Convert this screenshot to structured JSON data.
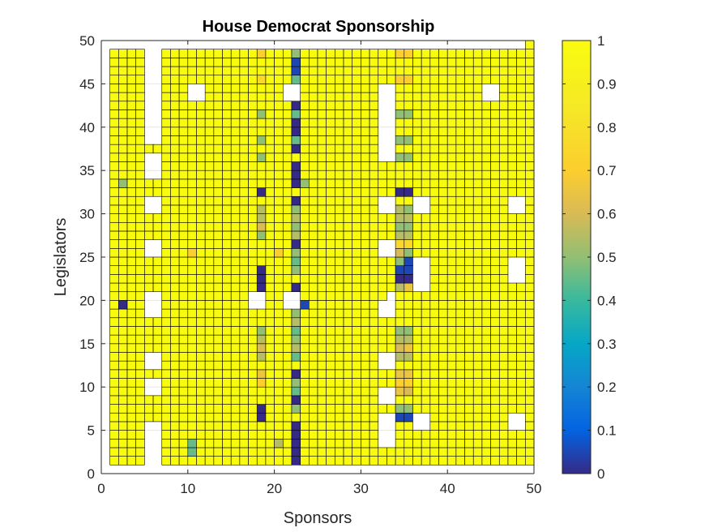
{
  "chart_data": {
    "type": "heatmap",
    "title": "House Democrat Sponsorship",
    "xlabel": "Sponsors",
    "ylabel": "Legislators",
    "xlim": [
      0,
      50
    ],
    "ylim": [
      0,
      50
    ],
    "xticks": [
      0,
      10,
      20,
      30,
      40,
      50
    ],
    "yticks": [
      0,
      5,
      10,
      15,
      20,
      25,
      30,
      35,
      40,
      45,
      50
    ],
    "colorbar": {
      "range": [
        0,
        1
      ],
      "ticks": [
        0,
        0.1,
        0.2,
        0.3,
        0.4,
        0.5,
        0.6,
        0.7,
        0.8,
        0.9,
        1
      ],
      "tick_labels": [
        "0",
        "0.1",
        "0.2",
        "0.3",
        "0.4",
        "0.5",
        "0.6",
        "0.7",
        "0.8",
        "0.9",
        "1"
      ],
      "colormap": "parula"
    },
    "cell_extent": {
      "x": [
        1,
        49
      ],
      "y": [
        1,
        49
      ]
    },
    "missing_note": "null entries are NaN cells shown blank",
    "base_value": 1,
    "nan_cells": [
      [
        5,
        1
      ],
      [
        5,
        2
      ],
      [
        5,
        3
      ],
      [
        5,
        4
      ],
      [
        5,
        5
      ],
      [
        5,
        9
      ],
      [
        5,
        10
      ],
      [
        5,
        12
      ],
      [
        5,
        13
      ],
      [
        5,
        18
      ],
      [
        5,
        19
      ],
      [
        5,
        20
      ],
      [
        5,
        25
      ],
      [
        5,
        26
      ],
      [
        5,
        30
      ],
      [
        5,
        31
      ],
      [
        5,
        34
      ],
      [
        5,
        35
      ],
      [
        5,
        36
      ],
      [
        5,
        38
      ],
      [
        5,
        39
      ],
      [
        5,
        40
      ],
      [
        5,
        41
      ],
      [
        5,
        42
      ],
      [
        5,
        43
      ],
      [
        5,
        44
      ],
      [
        5,
        45
      ],
      [
        5,
        46
      ],
      [
        5,
        47
      ],
      [
        5,
        48
      ],
      [
        6,
        1
      ],
      [
        6,
        2
      ],
      [
        6,
        3
      ],
      [
        6,
        4
      ],
      [
        6,
        5
      ],
      [
        6,
        9
      ],
      [
        6,
        10
      ],
      [
        6,
        12
      ],
      [
        6,
        13
      ],
      [
        6,
        18
      ],
      [
        6,
        19
      ],
      [
        6,
        20
      ],
      [
        6,
        25
      ],
      [
        6,
        26
      ],
      [
        6,
        30
      ],
      [
        6,
        31
      ],
      [
        6,
        34
      ],
      [
        6,
        35
      ],
      [
        6,
        36
      ],
      [
        6,
        38
      ],
      [
        6,
        39
      ],
      [
        6,
        40
      ],
      [
        6,
        41
      ],
      [
        6,
        42
      ],
      [
        6,
        43
      ],
      [
        6,
        44
      ],
      [
        6,
        45
      ],
      [
        6,
        46
      ],
      [
        6,
        47
      ],
      [
        6,
        48
      ],
      [
        10,
        43
      ],
      [
        10,
        44
      ],
      [
        11,
        43
      ],
      [
        11,
        44
      ],
      [
        17,
        19
      ],
      [
        17,
        20
      ],
      [
        18,
        19
      ],
      [
        18,
        20
      ],
      [
        21,
        19
      ],
      [
        21,
        20
      ],
      [
        21,
        43
      ],
      [
        21,
        44
      ],
      [
        22,
        19
      ],
      [
        22,
        20
      ],
      [
        22,
        43
      ],
      [
        22,
        44
      ],
      [
        32,
        3
      ],
      [
        32,
        4
      ],
      [
        32,
        5
      ],
      [
        32,
        6
      ],
      [
        32,
        8
      ],
      [
        32,
        9
      ],
      [
        32,
        12
      ],
      [
        32,
        13
      ],
      [
        32,
        18
      ],
      [
        32,
        19
      ],
      [
        32,
        25
      ],
      [
        32,
        26
      ],
      [
        32,
        30
      ],
      [
        32,
        31
      ],
      [
        32,
        36
      ],
      [
        32,
        37
      ],
      [
        32,
        38
      ],
      [
        32,
        39
      ],
      [
        32,
        40
      ],
      [
        32,
        41
      ],
      [
        32,
        42
      ],
      [
        32,
        43
      ],
      [
        32,
        44
      ],
      [
        33,
        3
      ],
      [
        33,
        4
      ],
      [
        33,
        5
      ],
      [
        33,
        6
      ],
      [
        33,
        8
      ],
      [
        33,
        9
      ],
      [
        33,
        12
      ],
      [
        33,
        13
      ],
      [
        33,
        18
      ],
      [
        33,
        19
      ],
      [
        33,
        20
      ],
      [
        33,
        25
      ],
      [
        33,
        26
      ],
      [
        33,
        30
      ],
      [
        33,
        31
      ],
      [
        33,
        36
      ],
      [
        33,
        37
      ],
      [
        33,
        38
      ],
      [
        33,
        39
      ],
      [
        33,
        40
      ],
      [
        33,
        41
      ],
      [
        33,
        42
      ],
      [
        33,
        43
      ],
      [
        33,
        44
      ],
      [
        36,
        5
      ],
      [
        36,
        6
      ],
      [
        36,
        21
      ],
      [
        36,
        22
      ],
      [
        36,
        23
      ],
      [
        36,
        24
      ],
      [
        36,
        30
      ],
      [
        36,
        31
      ],
      [
        37,
        5
      ],
      [
        37,
        6
      ],
      [
        37,
        21
      ],
      [
        37,
        22
      ],
      [
        37,
        23
      ],
      [
        37,
        24
      ],
      [
        37,
        30
      ],
      [
        37,
        31
      ],
      [
        44,
        43
      ],
      [
        44,
        44
      ],
      [
        45,
        43
      ],
      [
        45,
        44
      ],
      [
        47,
        5
      ],
      [
        47,
        6
      ],
      [
        47,
        22
      ],
      [
        47,
        23
      ],
      [
        47,
        24
      ],
      [
        47,
        30
      ],
      [
        47,
        31
      ],
      [
        48,
        5
      ],
      [
        48,
        6
      ],
      [
        48,
        22
      ],
      [
        48,
        23
      ],
      [
        48,
        24
      ],
      [
        48,
        30
      ],
      [
        48,
        31
      ],
      [
        1,
        49
      ],
      [
        2,
        49
      ],
      [
        3,
        49
      ],
      [
        4,
        49
      ],
      [
        5,
        49
      ],
      [
        6,
        49
      ],
      [
        7,
        49
      ],
      [
        8,
        49
      ],
      [
        9,
        49
      ],
      [
        10,
        49
      ],
      [
        11,
        49
      ],
      [
        12,
        49
      ],
      [
        13,
        49
      ],
      [
        14,
        49
      ],
      [
        15,
        49
      ],
      [
        16,
        49
      ],
      [
        17,
        49
      ],
      [
        18,
        49
      ],
      [
        19,
        49
      ],
      [
        20,
        49
      ],
      [
        21,
        49
      ],
      [
        22,
        49
      ],
      [
        23,
        49
      ],
      [
        24,
        49
      ],
      [
        25,
        49
      ],
      [
        26,
        49
      ],
      [
        27,
        49
      ],
      [
        28,
        49
      ],
      [
        29,
        49
      ],
      [
        30,
        49
      ],
      [
        31,
        49
      ],
      [
        32,
        49
      ],
      [
        33,
        49
      ],
      [
        34,
        49
      ],
      [
        35,
        49
      ],
      [
        36,
        49
      ],
      [
        37,
        49
      ],
      [
        38,
        49
      ],
      [
        39,
        49
      ],
      [
        40,
        49
      ],
      [
        41,
        49
      ],
      [
        42,
        49
      ],
      [
        43,
        49
      ],
      [
        44,
        49
      ],
      [
        45,
        49
      ],
      [
        46,
        49
      ],
      [
        47,
        49
      ],
      [
        48,
        49
      ]
    ],
    "value_cells": [
      [
        2,
        33,
        0.5
      ],
      [
        2,
        19,
        0.0
      ],
      [
        10,
        25,
        0.7
      ],
      [
        10,
        3,
        0.45
      ],
      [
        10,
        2,
        0.45
      ],
      [
        18,
        48,
        0.7
      ],
      [
        18,
        45,
        0.75
      ],
      [
        18,
        41,
        0.5
      ],
      [
        18,
        38,
        0.5
      ],
      [
        18,
        36,
        0.5
      ],
      [
        18,
        32,
        0.0
      ],
      [
        18,
        30,
        0.55
      ],
      [
        18,
        29,
        0.55
      ],
      [
        18,
        28,
        0.6
      ],
      [
        18,
        27,
        0.5
      ],
      [
        18,
        23,
        0.0
      ],
      [
        18,
        22,
        0.0
      ],
      [
        18,
        21,
        0.0
      ],
      [
        18,
        16,
        0.5
      ],
      [
        18,
        15,
        0.55
      ],
      [
        18,
        14,
        0.6
      ],
      [
        18,
        13,
        0.55
      ],
      [
        18,
        11,
        0.65
      ],
      [
        18,
        10,
        0.7
      ],
      [
        18,
        7,
        0.0
      ],
      [
        18,
        6,
        0.0
      ],
      [
        20,
        25,
        0.7
      ],
      [
        20,
        3,
        0.55
      ],
      [
        22,
        48,
        0.5
      ],
      [
        22,
        47,
        0.05
      ],
      [
        22,
        46,
        0.05
      ],
      [
        22,
        45,
        0.45
      ],
      [
        22,
        42,
        0.0
      ],
      [
        22,
        41,
        0.45
      ],
      [
        22,
        40,
        0.0
      ],
      [
        22,
        39,
        0.0
      ],
      [
        22,
        38,
        0.45
      ],
      [
        22,
        37,
        0.0
      ],
      [
        22,
        35,
        0.0
      ],
      [
        22,
        34,
        0.0
      ],
      [
        22,
        33,
        0.0
      ],
      [
        22,
        31,
        0.0
      ],
      [
        22,
        30,
        0.5
      ],
      [
        22,
        29,
        0.55
      ],
      [
        22,
        28,
        0.5
      ],
      [
        22,
        27,
        0.55
      ],
      [
        22,
        26,
        0.0
      ],
      [
        22,
        25,
        0.5
      ],
      [
        22,
        24,
        0.45
      ],
      [
        22,
        23,
        0.5
      ],
      [
        22,
        21,
        0.0
      ],
      [
        22,
        18,
        0.5
      ],
      [
        22,
        17,
        0.55
      ],
      [
        22,
        16,
        0.45
      ],
      [
        22,
        15,
        0.5
      ],
      [
        22,
        14,
        0.55
      ],
      [
        22,
        13,
        0.45
      ],
      [
        22,
        11,
        0.0
      ],
      [
        22,
        10,
        0.5
      ],
      [
        22,
        9,
        0.45
      ],
      [
        22,
        8,
        0.0
      ],
      [
        22,
        7,
        0.5
      ],
      [
        22,
        5,
        0.0
      ],
      [
        22,
        4,
        0.0
      ],
      [
        22,
        3,
        0.0
      ],
      [
        22,
        2,
        0.0
      ],
      [
        22,
        1,
        0.0
      ],
      [
        23,
        33,
        0.5
      ],
      [
        23,
        19,
        0.05
      ],
      [
        34,
        48,
        0.7
      ],
      [
        34,
        45,
        0.7
      ],
      [
        34,
        41,
        0.5
      ],
      [
        34,
        38,
        0.5
      ],
      [
        34,
        36,
        0.5
      ],
      [
        34,
        32,
        0.0
      ],
      [
        34,
        30,
        0.55
      ],
      [
        34,
        29,
        0.55
      ],
      [
        34,
        28,
        0.5
      ],
      [
        34,
        27,
        0.55
      ],
      [
        34,
        26,
        0.75
      ],
      [
        34,
        25,
        0.6
      ],
      [
        34,
        24,
        0.5
      ],
      [
        34,
        23,
        0.05
      ],
      [
        34,
        22,
        0.0
      ],
      [
        34,
        21,
        0.55
      ],
      [
        34,
        16,
        0.5
      ],
      [
        34,
        15,
        0.55
      ],
      [
        34,
        14,
        0.6
      ],
      [
        34,
        13,
        0.55
      ],
      [
        34,
        11,
        0.65
      ],
      [
        34,
        10,
        0.7
      ],
      [
        34,
        9,
        0.65
      ],
      [
        34,
        7,
        0.5
      ],
      [
        34,
        6,
        0.05
      ],
      [
        35,
        48,
        0.7
      ],
      [
        35,
        45,
        0.7
      ],
      [
        35,
        41,
        0.5
      ],
      [
        35,
        38,
        0.5
      ],
      [
        35,
        36,
        0.5
      ],
      [
        35,
        32,
        0.0
      ],
      [
        35,
        30,
        0.5
      ],
      [
        35,
        29,
        0.55
      ],
      [
        35,
        28,
        0.5
      ],
      [
        35,
        27,
        0.55
      ],
      [
        35,
        26,
        0.75
      ],
      [
        35,
        25,
        0.5
      ],
      [
        35,
        24,
        0.05
      ],
      [
        35,
        23,
        0.05
      ],
      [
        35,
        22,
        0.0
      ],
      [
        35,
        21,
        0.65
      ],
      [
        35,
        16,
        0.5
      ],
      [
        35,
        15,
        0.55
      ],
      [
        35,
        14,
        0.65
      ],
      [
        35,
        13,
        0.55
      ],
      [
        35,
        11,
        0.65
      ],
      [
        35,
        10,
        0.7
      ],
      [
        35,
        9,
        0.6
      ],
      [
        35,
        7,
        0.5
      ],
      [
        35,
        6,
        0.05
      ]
    ]
  }
}
